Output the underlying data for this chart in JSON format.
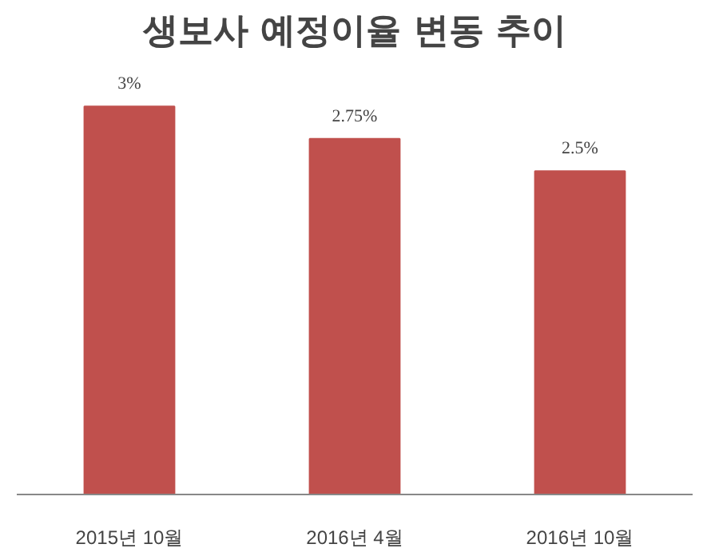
{
  "chart_data": {
    "type": "bar",
    "title": "생보사 예정이율 변동 추이",
    "categories": [
      "2015년 10월",
      "2016년 4월",
      "2016년 10월"
    ],
    "values": [
      3,
      2.75,
      2.5
    ],
    "value_labels": [
      "3%",
      "2.75%",
      "2.5%"
    ],
    "color": "#c0504d"
  }
}
